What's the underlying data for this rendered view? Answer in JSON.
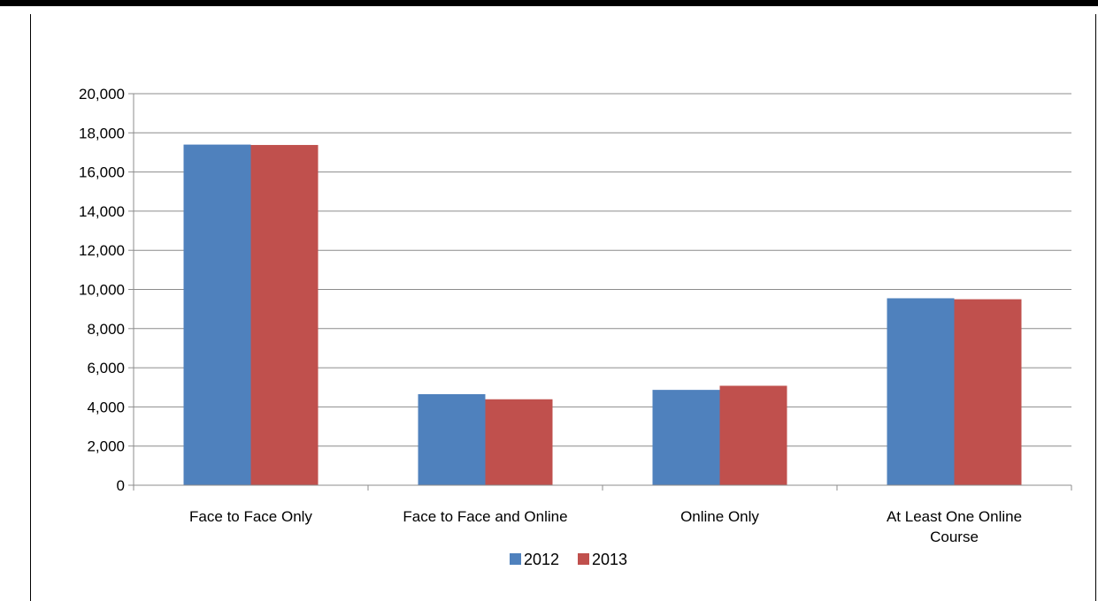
{
  "chart_data": {
    "type": "bar",
    "title": "",
    "xlabel": "",
    "ylabel": "",
    "categories": [
      [
        "Face to Face Only"
      ],
      [
        "Face to Face and Online"
      ],
      [
        "Online Only"
      ],
      [
        "At Least One Online",
        "Course"
      ]
    ],
    "series": [
      {
        "name": "2012",
        "color": "#4F81BD",
        "values": [
          17400,
          4650,
          4870,
          9550
        ]
      },
      {
        "name": "2013",
        "color": "#C0504D",
        "values": [
          17380,
          4390,
          5080,
          9500
        ]
      }
    ],
    "ylim": [
      0,
      20000
    ],
    "yticks": [
      0,
      2000,
      4000,
      6000,
      8000,
      10000,
      12000,
      14000,
      16000,
      18000,
      20000
    ],
    "ytick_labels": [
      "0",
      "2,000",
      "4,000",
      "6,000",
      "8,000",
      "10,000",
      "12,000",
      "14,000",
      "16,000",
      "18,000",
      "20,000"
    ],
    "grid": true,
    "legend": "bottom-center"
  }
}
